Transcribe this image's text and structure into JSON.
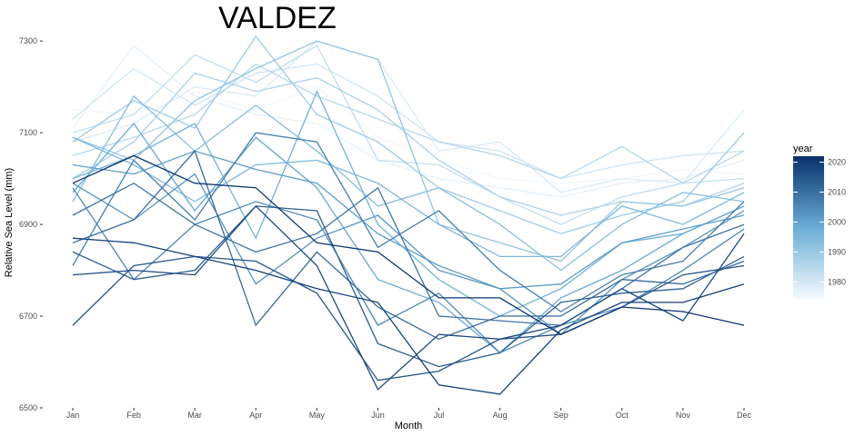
{
  "chart_data": {
    "type": "line",
    "title": "VALDEZ",
    "xlabel": "Month",
    "ylabel": "Relative Sea Level (mm)",
    "categories": [
      "Jan",
      "Feb",
      "Mar",
      "Apr",
      "May",
      "Jun",
      "Jul",
      "Aug",
      "Sep",
      "Oct",
      "Nov",
      "Dec"
    ],
    "y_ticks": [
      6500,
      6700,
      6900,
      7100,
      7300
    ],
    "ylim": [
      6500,
      7340
    ],
    "grid": false,
    "legend": {
      "title": "year",
      "position": "right",
      "ticks": [
        1980,
        1990,
        2000,
        2010,
        2020
      ],
      "range": [
        1974,
        2022
      ],
      "color_low": "#f7fbff",
      "color_high": "#08306b"
    },
    "series": [
      {
        "year": 1975,
        "values": [
          7150,
          7140,
          7190,
          7150,
          7200,
          7090,
          7040,
          7000,
          6990,
          7000,
          7020,
          7010
        ]
      },
      {
        "year": 1977,
        "values": [
          7110,
          7290,
          7180,
          7140,
          7120,
          7040,
          7000,
          6980,
          6960,
          6990,
          7000,
          7040
        ]
      },
      {
        "year": 1979,
        "values": [
          7080,
          7120,
          7200,
          7180,
          7300,
          7260,
          7060,
          7080,
          6970,
          7000,
          6990,
          7150
        ]
      },
      {
        "year": 1981,
        "values": [
          7130,
          7240,
          7160,
          7230,
          7250,
          7180,
          7080,
          7060,
          7000,
          7030,
          7050,
          7060
        ]
      },
      {
        "year": 1983,
        "values": [
          7100,
          7140,
          7270,
          7210,
          7290,
          7040,
          7030,
          6960,
          6900,
          6960,
          6990,
          7000
        ]
      },
      {
        "year": 1985,
        "values": [
          7050,
          7090,
          7140,
          7250,
          7180,
          7130,
          7080,
          7050,
          7000,
          7070,
          6990,
          7060
        ]
      },
      {
        "year": 1987,
        "values": [
          7000,
          7080,
          7230,
          7190,
          7220,
          7150,
          7040,
          6960,
          6920,
          6950,
          6940,
          6990
        ]
      },
      {
        "year": 1989,
        "values": [
          7080,
          7170,
          7110,
          7310,
          7140,
          7080,
          6980,
          6930,
          6880,
          6920,
          6950,
          7100
        ]
      },
      {
        "year": 1991,
        "values": [
          7090,
          7040,
          7170,
          7240,
          7300,
          7260,
          6900,
          6860,
          6820,
          6950,
          6940,
          6980
        ]
      },
      {
        "year": 1993,
        "values": [
          6950,
          7180,
          7060,
          7160,
          7060,
          6940,
          6980,
          6900,
          6800,
          6900,
          6970,
          6950
        ]
      },
      {
        "year": 1995,
        "values": [
          7090,
          7030,
          6950,
          7030,
          7040,
          6990,
          6900,
          6830,
          6830,
          6940,
          6900,
          6970
        ]
      },
      {
        "year": 1997,
        "values": [
          7000,
          7050,
          7120,
          6870,
          7190,
          6900,
          6780,
          6700,
          6760,
          6860,
          6880,
          6940
        ]
      },
      {
        "year": 1999,
        "values": [
          6970,
          7120,
          6930,
          7090,
          6980,
          6780,
          6730,
          6620,
          6740,
          6800,
          6880,
          6940
        ]
      },
      {
        "year": 2001,
        "values": [
          7030,
          7010,
          7060,
          7020,
          6990,
          6880,
          6810,
          6760,
          6770,
          6860,
          6890,
          6920
        ]
      },
      {
        "year": 2003,
        "values": [
          6990,
          6910,
          7010,
          6770,
          6870,
          6920,
          6800,
          6760,
          6660,
          6780,
          6850,
          6930
        ]
      },
      {
        "year": 2005,
        "values": [
          6980,
          6780,
          6900,
          6950,
          6910,
          6680,
          6750,
          6620,
          6680,
          6720,
          6800,
          6890
        ]
      },
      {
        "year": 2007,
        "values": [
          6810,
          7040,
          6910,
          7100,
          7080,
          6850,
          6930,
          6800,
          6710,
          6790,
          6820,
          6950
        ]
      },
      {
        "year": 2009,
        "values": [
          6920,
          6990,
          6900,
          6840,
          6880,
          6980,
          6700,
          6690,
          6680,
          6760,
          6850,
          6900
        ]
      },
      {
        "year": 2011,
        "values": [
          6860,
          6910,
          7060,
          6680,
          6840,
          6720,
          6650,
          6700,
          6700,
          6780,
          6770,
          6820
        ]
      },
      {
        "year": 2013,
        "values": [
          6840,
          6780,
          6800,
          6940,
          6930,
          6640,
          6590,
          6620,
          6730,
          6750,
          6760,
          6830
        ]
      },
      {
        "year": 2015,
        "values": [
          6680,
          6810,
          6830,
          6820,
          6750,
          6560,
          6580,
          6650,
          6660,
          6720,
          6790,
          6810
        ]
      },
      {
        "year": 2017,
        "values": [
          6790,
          6800,
          6790,
          6940,
          6810,
          6540,
          6660,
          6650,
          6680,
          6760,
          6690,
          6880
        ]
      },
      {
        "year": 2019,
        "values": [
          6870,
          6860,
          6830,
          6800,
          6760,
          6730,
          6550,
          6530,
          6670,
          6730,
          6730,
          6770
        ]
      },
      {
        "year": 2021,
        "values": [
          6990,
          7050,
          6990,
          6980,
          6860,
          6840,
          6740,
          6740,
          6660,
          6720,
          6710,
          6680
        ]
      }
    ]
  }
}
